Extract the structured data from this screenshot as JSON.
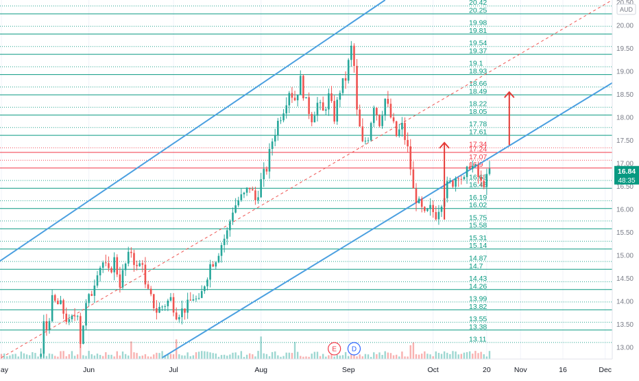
{
  "chart_data": {
    "type": "candlestick",
    "currency": "AUD",
    "last_price": "16.84",
    "countdown": "48:35",
    "y_axis_ticks": [
      20.5,
      20.0,
      19.5,
      19.0,
      18.5,
      18.0,
      17.5,
      17.0,
      16.5,
      16.0,
      15.5,
      15.0,
      14.5,
      14.0,
      13.5,
      13.0
    ],
    "y_range": [
      12.75,
      20.55
    ],
    "x_labels": [
      {
        "label": "May",
        "day": 0
      },
      {
        "label": "Jun",
        "day": 31
      },
      {
        "label": "Jul",
        "day": 61
      },
      {
        "label": "Aug",
        "day": 92
      },
      {
        "label": "Sep",
        "day": 123
      },
      {
        "label": "Oct",
        "day": 153
      },
      {
        "label": "20",
        "day": 172
      },
      {
        "label": "Nov",
        "day": 184
      },
      {
        "label": "16",
        "day": 199
      },
      {
        "label": "Dec",
        "day": 214
      }
    ],
    "x_range_days": [
      -0.5,
      216.5
    ],
    "levels": [
      {
        "value": 20.42,
        "label": "20.42",
        "style": "dotted",
        "color": "#089981"
      },
      {
        "value": 20.25,
        "label": "20.25",
        "style": "solid",
        "color": "#089981"
      },
      {
        "value": 19.98,
        "label": "19.98",
        "style": "dotted",
        "color": "#089981"
      },
      {
        "value": 19.81,
        "label": "19.81",
        "style": "solid",
        "color": "#089981"
      },
      {
        "value": 19.54,
        "label": "19.54",
        "style": "dotted",
        "color": "#089981"
      },
      {
        "value": 19.37,
        "label": "19.37",
        "style": "solid",
        "color": "#089981"
      },
      {
        "value": 19.1,
        "label": "19.1",
        "style": "dotted",
        "color": "#089981"
      },
      {
        "value": 18.93,
        "label": "18.93",
        "style": "solid",
        "color": "#089981"
      },
      {
        "value": 18.66,
        "label": "18.66",
        "style": "dotted",
        "color": "#089981"
      },
      {
        "value": 18.49,
        "label": "18.49",
        "style": "solid",
        "color": "#089981"
      },
      {
        "value": 18.22,
        "label": "18.22",
        "style": "dotted",
        "color": "#089981"
      },
      {
        "value": 18.05,
        "label": "18.05",
        "style": "solid",
        "color": "#089981"
      },
      {
        "value": 17.78,
        "label": "17.78",
        "style": "dotted",
        "color": "#089981"
      },
      {
        "value": 17.61,
        "label": "17.61",
        "style": "solid",
        "color": "#089981"
      },
      {
        "value": 17.34,
        "label": "17.34",
        "style": "dotted",
        "color": "#f23645"
      },
      {
        "value": 17.24,
        "label": "17.24",
        "style": "solid",
        "color": "#f23645"
      },
      {
        "value": 17.07,
        "label": "17.07",
        "style": "dotted",
        "color": "#f23645"
      },
      {
        "value": 16.9,
        "label": "16.9",
        "style": "solid",
        "color": "#f23645"
      },
      {
        "value": 16.63,
        "label": "16.63",
        "style": "dotted",
        "color": "#089981"
      },
      {
        "value": 16.46,
        "label": "16.46",
        "style": "solid",
        "color": "#089981"
      },
      {
        "value": 16.19,
        "label": "16.19",
        "style": "dotted",
        "color": "#089981"
      },
      {
        "value": 16.02,
        "label": "16.02",
        "style": "solid",
        "color": "#089981"
      },
      {
        "value": 15.75,
        "label": "15.75",
        "style": "dotted",
        "color": "#089981"
      },
      {
        "value": 15.58,
        "label": "15.58",
        "style": "solid",
        "color": "#089981"
      },
      {
        "value": 15.31,
        "label": "15.31",
        "style": "dotted",
        "color": "#089981"
      },
      {
        "value": 15.14,
        "label": "15.14",
        "style": "solid",
        "color": "#089981"
      },
      {
        "value": 14.87,
        "label": "14.87",
        "style": "dotted",
        "color": "#089981"
      },
      {
        "value": 14.7,
        "label": "14.7",
        "style": "solid",
        "color": "#089981"
      },
      {
        "value": 14.43,
        "label": "14.43",
        "style": "dotted",
        "color": "#089981"
      },
      {
        "value": 14.26,
        "label": "14.26",
        "style": "solid",
        "color": "#089981"
      },
      {
        "value": 13.99,
        "label": "13.99",
        "style": "dotted",
        "color": "#089981"
      },
      {
        "value": 13.82,
        "label": "13.82",
        "style": "solid",
        "color": "#089981"
      },
      {
        "value": 13.55,
        "label": "13.55",
        "style": "dotted",
        "color": "#089981"
      },
      {
        "value": 13.38,
        "label": "13.38",
        "style": "solid",
        "color": "#089981"
      },
      {
        "value": 13.11,
        "label": "13.11",
        "style": "dotted",
        "color": "#089981"
      }
    ],
    "channel": {
      "color": "#4a9fe0",
      "upper": [
        {
          "day": -0.5,
          "price": 14.88
        },
        {
          "day": 136,
          "price": 20.55
        }
      ],
      "mid": [
        {
          "day": 0,
          "price": 12.78
        },
        {
          "day": 216.5,
          "price": 20.55
        }
      ],
      "lower": [
        {
          "day": 57,
          "price": 12.78
        },
        {
          "day": 216.5,
          "price": 18.75
        }
      ]
    },
    "arrows": [
      {
        "day": 157,
        "from": 15.78,
        "to": 17.45,
        "color": "#e53935"
      },
      {
        "day": 180,
        "from": 17.4,
        "to": 18.55,
        "color": "#e53935"
      }
    ],
    "event_markers": [
      {
        "label": "E",
        "day": 118,
        "color": "#f23645"
      },
      {
        "label": "D",
        "day": 125,
        "color": "#2962ff"
      }
    ],
    "price_path": [
      {
        "day": 0,
        "price": 12.8
      },
      {
        "day": 14,
        "price": 12.85
      },
      {
        "day": 15,
        "price": 13.5
      },
      {
        "day": 16,
        "price": 13.4
      },
      {
        "day": 18,
        "price": 14.0
      },
      {
        "day": 21,
        "price": 13.9
      },
      {
        "day": 24,
        "price": 13.5
      },
      {
        "day": 27,
        "price": 13.8
      },
      {
        "day": 28,
        "price": 13.15
      },
      {
        "day": 30,
        "price": 13.9
      },
      {
        "day": 32,
        "price": 14.2
      },
      {
        "day": 34,
        "price": 14.7
      },
      {
        "day": 36,
        "price": 14.85
      },
      {
        "day": 38,
        "price": 14.6
      },
      {
        "day": 40,
        "price": 14.9
      },
      {
        "day": 42,
        "price": 14.4
      },
      {
        "day": 44,
        "price": 14.8
      },
      {
        "day": 46,
        "price": 15.1
      },
      {
        "day": 48,
        "price": 14.7
      },
      {
        "day": 50,
        "price": 14.9
      },
      {
        "day": 51,
        "price": 14.3
      },
      {
        "day": 53,
        "price": 14.05
      },
      {
        "day": 55,
        "price": 13.8
      },
      {
        "day": 57,
        "price": 13.9
      },
      {
        "day": 60,
        "price": 14.05
      },
      {
        "day": 62,
        "price": 13.75
      },
      {
        "day": 64,
        "price": 13.8
      },
      {
        "day": 66,
        "price": 13.9
      },
      {
        "day": 68,
        "price": 14.1
      },
      {
        "day": 70,
        "price": 13.95
      },
      {
        "day": 72,
        "price": 14.4
      },
      {
        "day": 74,
        "price": 14.8
      },
      {
        "day": 76,
        "price": 14.95
      },
      {
        "day": 78,
        "price": 15.25
      },
      {
        "day": 80,
        "price": 15.5
      },
      {
        "day": 82,
        "price": 16.0
      },
      {
        "day": 84,
        "price": 16.2
      },
      {
        "day": 86,
        "price": 16.3
      },
      {
        "day": 88,
        "price": 16.5
      },
      {
        "day": 90,
        "price": 16.2
      },
      {
        "day": 92,
        "price": 16.6
      },
      {
        "day": 94,
        "price": 16.9
      },
      {
        "day": 96,
        "price": 17.5
      },
      {
        "day": 98,
        "price": 17.9
      },
      {
        "day": 100,
        "price": 18.2
      },
      {
        "day": 102,
        "price": 18.6
      },
      {
        "day": 104,
        "price": 18.4
      },
      {
        "day": 106,
        "price": 18.8
      },
      {
        "day": 108,
        "price": 18.3
      },
      {
        "day": 110,
        "price": 18.0
      },
      {
        "day": 112,
        "price": 18.3
      },
      {
        "day": 114,
        "price": 18.1
      },
      {
        "day": 116,
        "price": 18.45
      },
      {
        "day": 118,
        "price": 18.0
      },
      {
        "day": 120,
        "price": 18.6
      },
      {
        "day": 122,
        "price": 18.85
      },
      {
        "day": 124,
        "price": 19.5
      },
      {
        "day": 125,
        "price": 19.1
      },
      {
        "day": 126,
        "price": 18.1
      },
      {
        "day": 128,
        "price": 17.4
      },
      {
        "day": 130,
        "price": 17.6
      },
      {
        "day": 132,
        "price": 18.3
      },
      {
        "day": 134,
        "price": 17.9
      },
      {
        "day": 136,
        "price": 18.4
      },
      {
        "day": 138,
        "price": 18.0
      },
      {
        "day": 140,
        "price": 17.6
      },
      {
        "day": 142,
        "price": 17.8
      },
      {
        "day": 144,
        "price": 17.3
      },
      {
        "day": 145,
        "price": 16.9
      },
      {
        "day": 146,
        "price": 16.4
      },
      {
        "day": 148,
        "price": 16.1
      },
      {
        "day": 150,
        "price": 15.85
      },
      {
        "day": 152,
        "price": 16.0
      },
      {
        "day": 154,
        "price": 15.9
      },
      {
        "day": 156,
        "price": 16.2
      },
      {
        "day": 158,
        "price": 16.5
      },
      {
        "day": 160,
        "price": 16.6
      },
      {
        "day": 162,
        "price": 16.8
      },
      {
        "day": 164,
        "price": 16.6
      },
      {
        "day": 166,
        "price": 17.0
      },
      {
        "day": 168,
        "price": 16.85
      },
      {
        "day": 170,
        "price": 16.55
      },
      {
        "day": 172,
        "price": 16.65
      },
      {
        "day": 173,
        "price": 16.84
      }
    ]
  }
}
